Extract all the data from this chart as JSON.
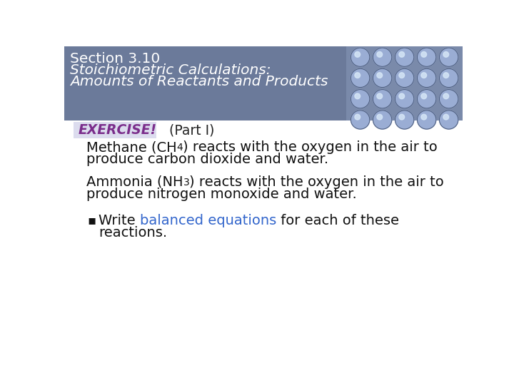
{
  "header_bg_color": "#6b7a9a",
  "header_text_color": "#ffffff",
  "header_line1": "Section 3.10",
  "header_line2": "Stoichiometric Calculations:",
  "header_line3": "Amounts of Reactants and Products",
  "body_bg_color": "#ffffff",
  "exercise_label": "EXERCISE!",
  "exercise_label_color": "#7b2d8b",
  "exercise_bg_color": "#dcdcee",
  "part_label": "(Part I)",
  "part_label_color": "#222222",
  "para1_line2": "produce carbon dioxide and water.",
  "para2_line2": "produce nitrogen monoxide and water.",
  "bullet_colored": "balanced equations",
  "bullet_color": "#3366cc",
  "bullet_line2": "reactions.",
  "body_text_color": "#111111",
  "image_area_color": "#7a8aaa",
  "font_size_header": 14.5,
  "font_size_body": 14.0,
  "font_size_exercise": 13.5
}
